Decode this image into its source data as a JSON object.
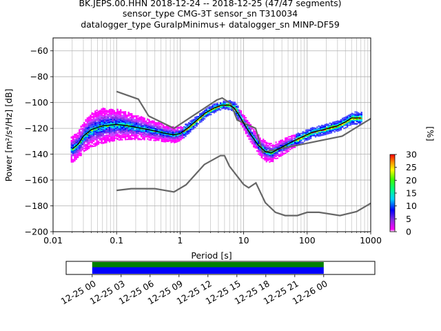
{
  "chart_data": {
    "type": "heatmap",
    "title_lines": [
      "BK.JEPS.00.HHN   2018-12-24 -- 2018-12-25  (47/47 segments)",
      "sensor_type CMG-3T sensor_sn T310034",
      "datalogger_type GuralpMinimus+ datalogger_sn MINP-DF59"
    ],
    "xlabel": "Period [s]",
    "ylabel": "Power [m²/s⁴/Hz] [dB]",
    "x_scale": "log",
    "xlim": [
      0.01,
      1000
    ],
    "ylim": [
      -200,
      -50
    ],
    "x_tick_labels": [
      "0.01",
      "0.1",
      "1",
      "10",
      "100",
      "1000"
    ],
    "y_ticks": [
      -200,
      -180,
      -160,
      -140,
      -120,
      -100,
      -80,
      -60
    ],
    "grid": true,
    "noise_models": {
      "high": [
        [
          0.1,
          -91.5
        ],
        [
          0.22,
          -97.4
        ],
        [
          0.32,
          -110.5
        ],
        [
          0.8,
          -120.0
        ],
        [
          3.8,
          -98.0
        ],
        [
          4.6,
          -96.5
        ],
        [
          6.3,
          -101.0
        ],
        [
          7.9,
          -113.5
        ],
        [
          15.4,
          -120.0
        ],
        [
          20.0,
          -138.5
        ],
        [
          354.8,
          -126.0
        ],
        [
          1000,
          -112.5
        ]
      ],
      "low": [
        [
          0.1,
          -168.0
        ],
        [
          0.17,
          -166.7
        ],
        [
          0.4,
          -166.7
        ],
        [
          0.8,
          -169.2
        ],
        [
          1.24,
          -163.7
        ],
        [
          2.4,
          -148.0
        ],
        [
          4.3,
          -141.1
        ],
        [
          5.0,
          -141.1
        ],
        [
          6.0,
          -149.4
        ],
        [
          10.0,
          -163.5
        ],
        [
          12.0,
          -166.0
        ],
        [
          15.6,
          -162.2
        ],
        [
          21.9,
          -177.5
        ],
        [
          31.6,
          -185.0
        ],
        [
          45.0,
          -187.5
        ],
        [
          70.0,
          -187.5
        ],
        [
          100.0,
          -185.0
        ],
        [
          154.0,
          -185.0
        ],
        [
          328.0,
          -187.5
        ],
        [
          600.0,
          -184.4
        ],
        [
          1000,
          -178.0
        ]
      ]
    },
    "mode_curve": [
      [
        0.02,
        -136
      ],
      [
        0.025,
        -132
      ],
      [
        0.03,
        -126
      ],
      [
        0.04,
        -121
      ],
      [
        0.06,
        -118
      ],
      [
        0.1,
        -117
      ],
      [
        0.15,
        -118
      ],
      [
        0.25,
        -120
      ],
      [
        0.4,
        -122
      ],
      [
        0.6,
        -124
      ],
      [
        0.8,
        -125
      ],
      [
        1.0,
        -124
      ],
      [
        1.3,
        -120
      ],
      [
        1.8,
        -114
      ],
      [
        2.5,
        -108
      ],
      [
        3.5,
        -104
      ],
      [
        4.5,
        -102
      ],
      [
        6.0,
        -102
      ],
      [
        7.0,
        -104
      ],
      [
        8.5,
        -110
      ],
      [
        10.0,
        -116
      ],
      [
        13.0,
        -125
      ],
      [
        17.0,
        -133
      ],
      [
        22.0,
        -138
      ],
      [
        27.0,
        -139
      ],
      [
        35.0,
        -136
      ],
      [
        50.0,
        -132
      ],
      [
        80.0,
        -127
      ],
      [
        120.0,
        -123
      ],
      [
        180.0,
        -121
      ],
      [
        250.0,
        -119
      ],
      [
        300.0,
        -118
      ],
      [
        400.0,
        -115
      ],
      [
        500.0,
        -112
      ],
      [
        700.0,
        -112
      ]
    ],
    "density_spread_db": [
      [
        0.02,
        10
      ],
      [
        0.05,
        14
      ],
      [
        0.1,
        12
      ],
      [
        0.3,
        8
      ],
      [
        0.8,
        6
      ],
      [
        1.5,
        4
      ],
      [
        5.0,
        3
      ],
      [
        10.0,
        6
      ],
      [
        20.0,
        8
      ],
      [
        40.0,
        6
      ],
      [
        100.0,
        4
      ],
      [
        300.0,
        4
      ],
      [
        700.0,
        5
      ]
    ],
    "colorbar": {
      "label": "[%]",
      "range": [
        0,
        30
      ],
      "ticks": [
        0,
        5,
        10,
        15,
        20,
        25,
        30
      ]
    },
    "data_coverage": {
      "tick_labels": [
        "12-25 00",
        "12-25 03",
        "12-25 06",
        "12-25 09",
        "12-25 12",
        "12-25 15",
        "12-25 18",
        "12-25 21",
        "12-26 00"
      ],
      "span_hours": [
        -2.7,
        29.3
      ],
      "data_hours": [
        0,
        24
      ],
      "top_band_color": "#008000",
      "bottom_band_color": "#0000ff"
    }
  }
}
